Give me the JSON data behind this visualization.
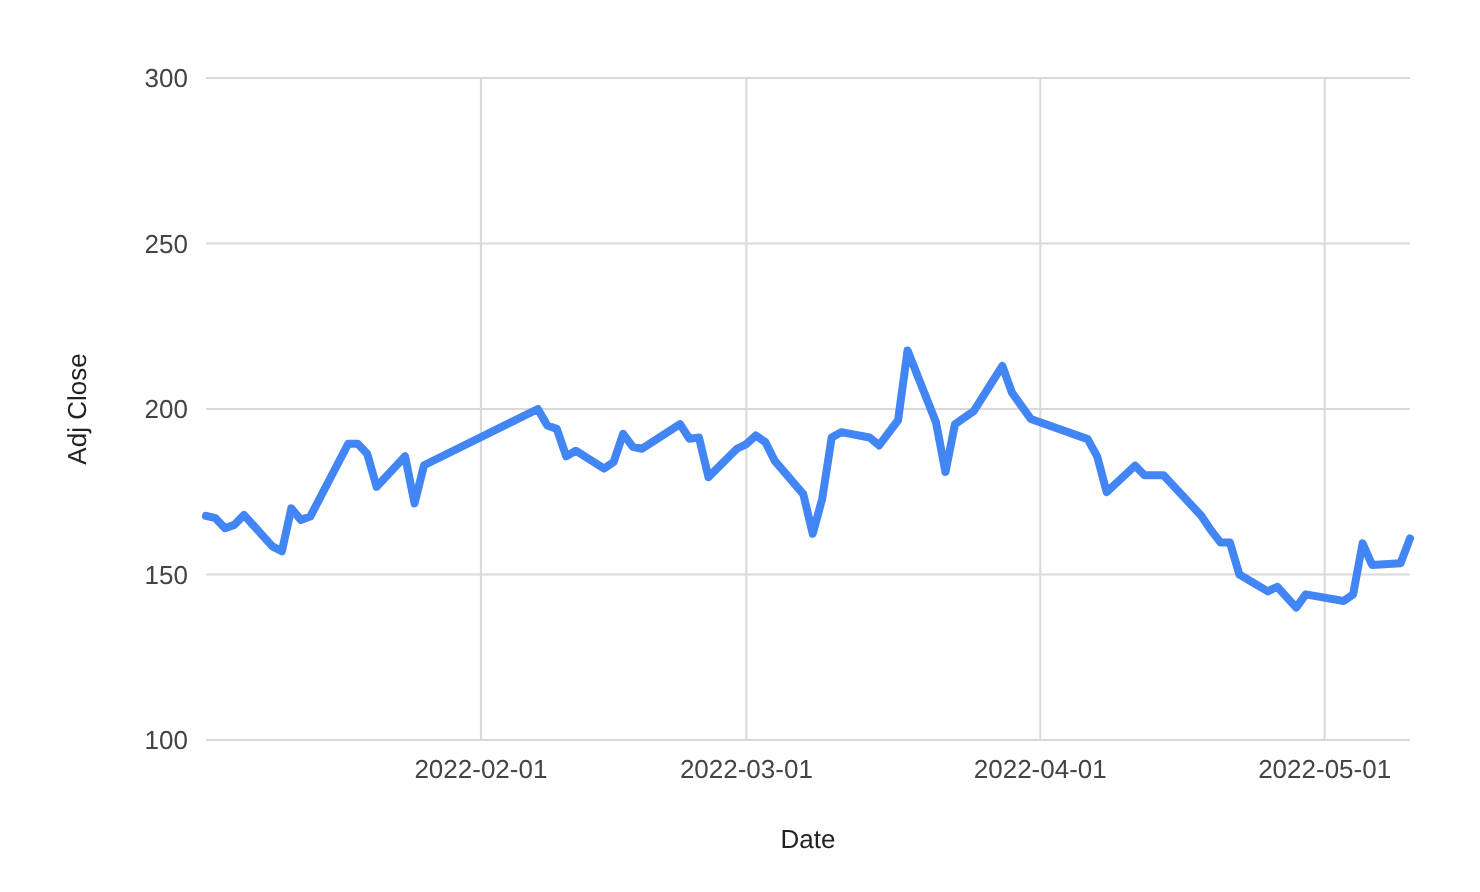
{
  "chart_data": {
    "type": "line",
    "xlabel": "Date",
    "ylabel": "Adj Close",
    "xlim": [
      "2022-01-03",
      "2022-05-10"
    ],
    "ylim": [
      100,
      300
    ],
    "xticks": [
      "2022-02-01",
      "2022-03-01",
      "2022-04-01",
      "2022-05-01"
    ],
    "yticks": [
      100,
      150,
      200,
      250,
      300
    ],
    "grid": true,
    "marker": "none",
    "line_style": "solid",
    "x": [
      "2022-01-03",
      "2022-01-04",
      "2022-01-05",
      "2022-01-06",
      "2022-01-07",
      "2022-01-10",
      "2022-01-11",
      "2022-01-12",
      "2022-01-13",
      "2022-01-14",
      "2022-01-18",
      "2022-01-19",
      "2022-01-20",
      "2022-01-21",
      "2022-01-24",
      "2022-01-25",
      "2022-01-26",
      "2022-02-07",
      "2022-02-08",
      "2022-02-09",
      "2022-02-10",
      "2022-02-11",
      "2022-02-14",
      "2022-02-15",
      "2022-02-16",
      "2022-02-17",
      "2022-02-18",
      "2022-02-22",
      "2022-02-23",
      "2022-02-24",
      "2022-02-25",
      "2022-02-28",
      "2022-03-01",
      "2022-03-02",
      "2022-03-03",
      "2022-03-04",
      "2022-03-07",
      "2022-03-08",
      "2022-03-09",
      "2022-03-10",
      "2022-03-11",
      "2022-03-14",
      "2022-03-15",
      "2022-03-17",
      "2022-03-18",
      "2022-03-21",
      "2022-03-22",
      "2022-03-23",
      "2022-03-25",
      "2022-03-28",
      "2022-03-29",
      "2022-03-31",
      "2022-04-06",
      "2022-04-07",
      "2022-04-08",
      "2022-04-11",
      "2022-04-12",
      "2022-04-14",
      "2022-04-18",
      "2022-04-19",
      "2022-04-20",
      "2022-04-21",
      "2022-04-22",
      "2022-04-25",
      "2022-04-26",
      "2022-04-28",
      "2022-04-29",
      "2022-05-03",
      "2022-05-04",
      "2022-05-05",
      "2022-05-06",
      "2022-05-09",
      "2022-05-10"
    ],
    "series": [
      {
        "color": "#4285f4",
        "values": [
          167.7,
          167,
          164,
          165,
          168,
          158.5,
          157,
          170,
          166.5,
          167.5,
          189.5,
          189.5,
          186.5,
          176.5,
          185.7,
          171.5,
          183,
          200,
          195,
          194,
          185.7,
          187.4,
          182,
          184,
          192.5,
          188.6,
          188,
          195.4,
          191,
          191.4,
          179.4,
          188,
          189.4,
          192,
          190,
          184.3,
          174.3,
          162.3,
          172.9,
          191.4,
          193,
          191.4,
          189,
          196.6,
          217.7,
          196,
          181,
          195.4,
          199.4,
          213,
          205,
          197,
          190.9,
          185.7,
          174.9,
          182.9,
          180,
          180,
          167.7,
          163.4,
          159.7,
          159.7,
          150,
          144.9,
          146.3,
          140,
          144,
          142,
          144,
          159.4,
          152.9,
          153.4,
          160.9
        ]
      }
    ]
  }
}
